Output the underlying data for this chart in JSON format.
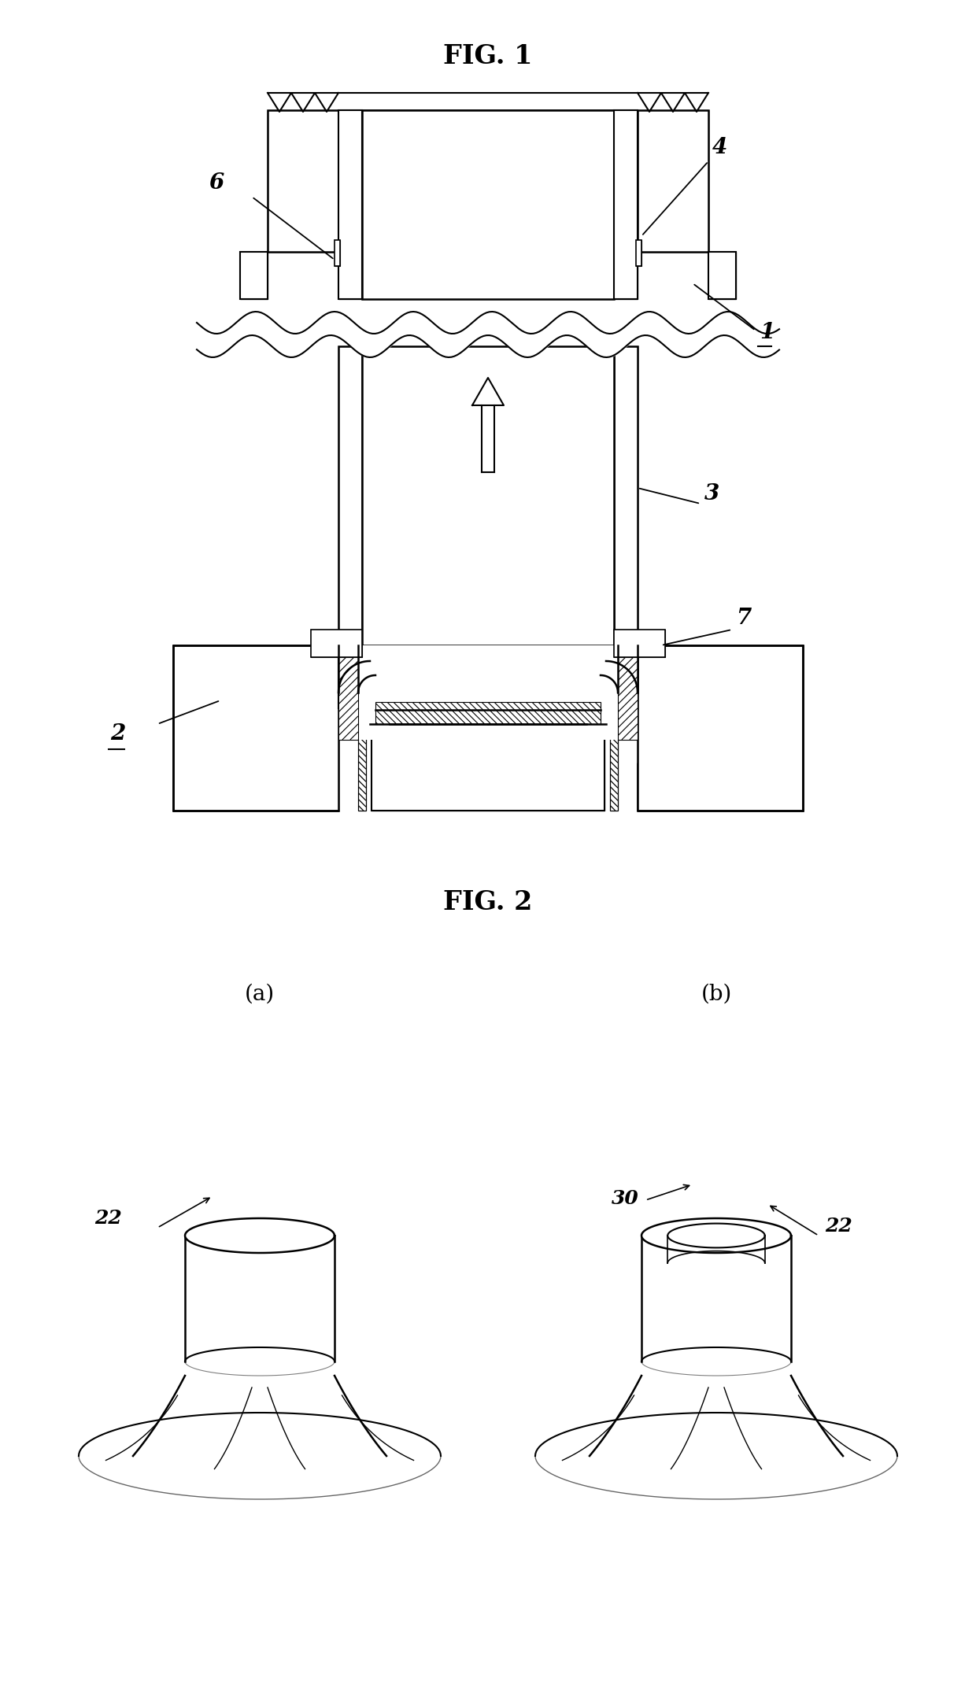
{
  "fig_width": 12.4,
  "fig_height": 21.69,
  "dpi": 100,
  "background_color": "#ffffff",
  "fig1_title": "FIG. 1",
  "fig2_title": "FIG. 2"
}
